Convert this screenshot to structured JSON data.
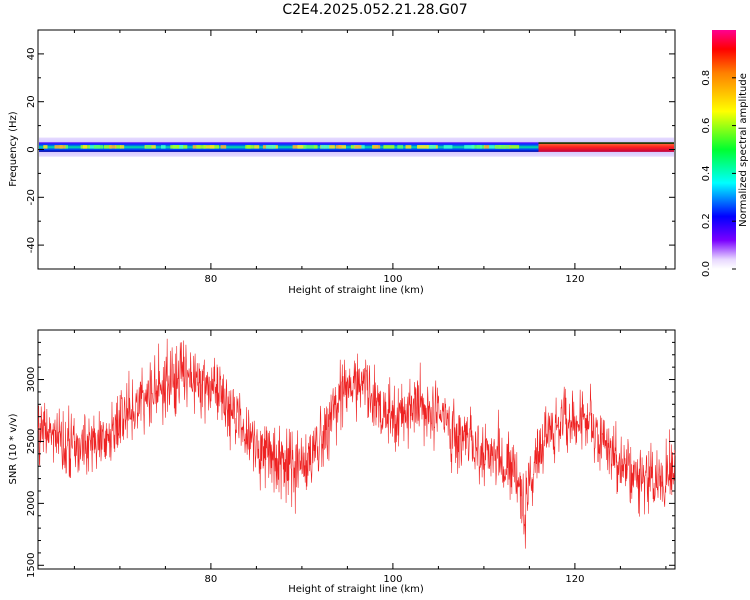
{
  "title": "C2E4.2025.052.21.28.G07",
  "chart_data": [
    {
      "type": "heatmap",
      "xlabel": "Height of straight line (km)",
      "ylabel": "Frequency (Hz)",
      "xlim": [
        61,
        131
      ],
      "ylim": [
        -50,
        50
      ],
      "x_ticks": [
        80,
        100,
        120
      ],
      "y_ticks": [
        -40,
        -20,
        0,
        20,
        40
      ],
      "colorbar": {
        "label": "Normalized spectral amplitude",
        "range": [
          0,
          1
        ],
        "ticks": [
          "0.0",
          "0.2",
          "0.4",
          "0.6",
          "0.8"
        ]
      },
      "band": {
        "center_hz": 1,
        "strong_halfwidth_hz": 2,
        "weak_halfwidth_hz": 4,
        "saturated_from_km": 116
      }
    },
    {
      "type": "line",
      "xlabel": "Height of straight line (km)",
      "ylabel": "SNR (10 * v/v)",
      "xlim": [
        61,
        131
      ],
      "ylim": [
        1470,
        3400
      ],
      "x_ticks": [
        80,
        100,
        120
      ],
      "y_ticks": [
        1500,
        2000,
        2500,
        3000
      ],
      "series": [
        {
          "color": "#ee2222",
          "x": [
            61,
            63,
            65,
            67,
            69,
            71,
            73,
            75,
            77,
            79,
            81,
            83,
            85,
            87,
            89,
            91,
            93,
            95,
            96,
            97,
            99,
            101,
            103,
            105,
            107,
            109,
            111,
            113,
            114,
            114.5,
            115,
            116,
            117,
            119,
            121,
            123,
            125,
            127,
            129,
            131
          ],
          "y": [
            2600,
            2550,
            2450,
            2500,
            2550,
            2750,
            2850,
            2950,
            3050,
            3000,
            2900,
            2650,
            2500,
            2350,
            2250,
            2350,
            2650,
            2950,
            3000,
            2900,
            2750,
            2700,
            2800,
            2700,
            2550,
            2500,
            2350,
            2300,
            2150,
            1850,
            2150,
            2400,
            2550,
            2700,
            2700,
            2500,
            2300,
            2200,
            2150,
            2250
          ]
        }
      ]
    }
  ]
}
